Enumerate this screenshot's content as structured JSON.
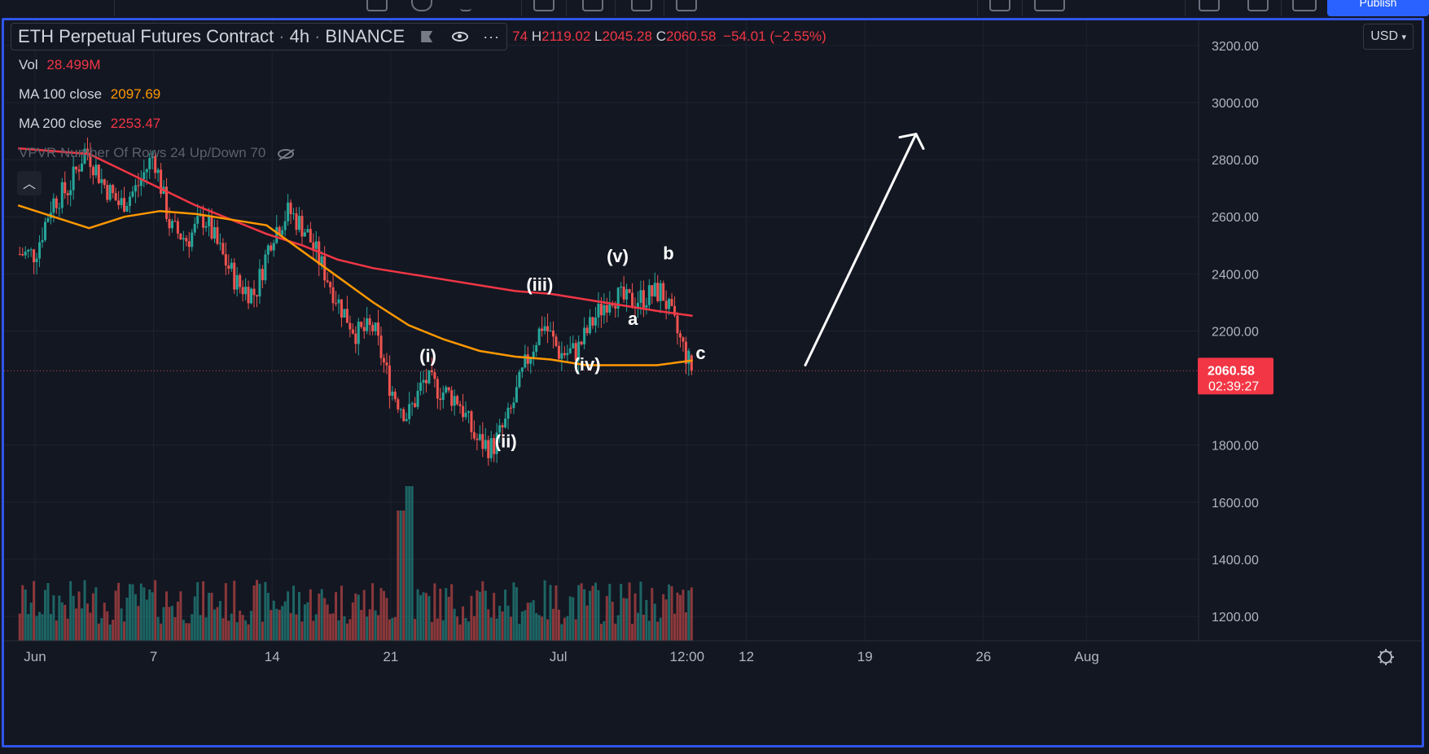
{
  "symbol": {
    "name": "ETH Perpetual Futures Contract",
    "interval": "4h",
    "exchange": "BINANCE"
  },
  "ohlc": {
    "open_fragment": "74",
    "high_label": "H",
    "high": "2119.02",
    "low_label": "L",
    "low": "2045.28",
    "close_label": "C",
    "close": "2060.58",
    "change": "−54.01 (−2.55%)"
  },
  "indicators": {
    "vol": {
      "label": "Vol",
      "value": "28.499M"
    },
    "ma100": {
      "label": "MA 100 close",
      "value": "2097.69"
    },
    "ma200": {
      "label": "MA 200 close",
      "value": "2253.47"
    },
    "vpvr": {
      "label": "VPVR Number Of Rows 24 Up/Down 70"
    }
  },
  "currency": "USD",
  "last_price": {
    "value": "2060.58",
    "countdown": "02:39:27"
  },
  "colors": {
    "background": "#131722",
    "up": "#26a69a",
    "down": "#ef5350",
    "ma100": "#ff9800",
    "ma200": "#f23645",
    "frame": "#2f55e8"
  },
  "chart_data": {
    "type": "candlestick",
    "y_axis": {
      "ticks": [
        "3200.00",
        "3000.00",
        "2800.00",
        "2600.00",
        "2400.00",
        "2200.00",
        "1800.00",
        "1600.00",
        "1400.00",
        "1200.00"
      ],
      "range": [
        1120,
        3260
      ],
      "position": "right"
    },
    "x_axis": {
      "ticks": [
        "Jun",
        "7",
        "14",
        "21",
        "Jul",
        "12:00",
        "12",
        "19",
        "26",
        "Aug"
      ]
    },
    "grid": true,
    "close_path": [
      {
        "t": "May 31",
        "p": 2470
      },
      {
        "t": "Jun 1",
        "p": 2650
      },
      {
        "t": "Jun 2",
        "p": 2700
      },
      {
        "t": "Jun 3",
        "p": 2840
      },
      {
        "t": "Jun 4",
        "p": 2720
      },
      {
        "t": "Jun 5",
        "p": 2640
      },
      {
        "t": "Jun 6",
        "p": 2700
      },
      {
        "t": "Jun 7",
        "p": 2820
      },
      {
        "t": "Jun 8",
        "p": 2560
      },
      {
        "t": "Jun 9",
        "p": 2520
      },
      {
        "t": "Jun 10",
        "p": 2600
      },
      {
        "t": "Jun 11",
        "p": 2470
      },
      {
        "t": "Jun 12",
        "p": 2360
      },
      {
        "t": "Jun 13",
        "p": 2330
      },
      {
        "t": "Jun 14",
        "p": 2540
      },
      {
        "t": "Jun 15",
        "p": 2620
      },
      {
        "t": "Jun 16",
        "p": 2550
      },
      {
        "t": "Jun 17",
        "p": 2420
      },
      {
        "t": "Jun 18",
        "p": 2290
      },
      {
        "t": "Jun 19",
        "p": 2190
      },
      {
        "t": "Jun 20",
        "p": 2210
      },
      {
        "t": "Jun 21",
        "p": 2000
      },
      {
        "t": "Jun 22",
        "p": 1900
      },
      {
        "t": "Jun 23",
        "p": 2030
      },
      {
        "t": "Jun 24",
        "p": 1990
      },
      {
        "t": "Jun 25",
        "p": 1960
      },
      {
        "t": "Jun 26",
        "p": 1820
      },
      {
        "t": "Jun 27",
        "p": 1790
      },
      {
        "t": "Jun 28",
        "p": 1900
      },
      {
        "t": "Jun 29",
        "p": 2090
      },
      {
        "t": "Jun 30",
        "p": 2230
      },
      {
        "t": "Jul 1",
        "p": 2120
      },
      {
        "t": "Jul 2",
        "p": 2130
      },
      {
        "t": "Jul 3",
        "p": 2240
      },
      {
        "t": "Jul 4",
        "p": 2330
      },
      {
        "t": "Jul 5",
        "p": 2300
      },
      {
        "t": "Jul 6",
        "p": 2320
      },
      {
        "t": "Jul 7",
        "p": 2340
      },
      {
        "t": "Jul 8",
        "p": 2180
      },
      {
        "t": "Jul 8 20:00",
        "p": 2060
      }
    ],
    "ma100": [
      2640,
      2600,
      2560,
      2600,
      2620,
      2610,
      2590,
      2570,
      2480,
      2390,
      2300,
      2220,
      2170,
      2130,
      2110,
      2100,
      2080,
      2080,
      2080,
      2097
    ],
    "ma200": [
      2840,
      2830,
      2820,
      2760,
      2700,
      2640,
      2590,
      2540,
      2500,
      2450,
      2420,
      2400,
      2380,
      2360,
      2340,
      2330,
      2310,
      2290,
      2270,
      2253
    ],
    "projection": {
      "from": 2080,
      "to": 2890,
      "direction": "up"
    },
    "wave_labels": [
      {
        "label": "(i)",
        "price": 2040
      },
      {
        "label": "(ii)",
        "price": 1740
      },
      {
        "label": "(iii)",
        "price": 2290
      },
      {
        "label": "(iv)",
        "price": 2010
      },
      {
        "label": "(v)",
        "price": 2390
      },
      {
        "label": "a",
        "price": 2170
      },
      {
        "label": "b",
        "price": 2400
      },
      {
        "label": "c",
        "price": 2050
      }
    ]
  }
}
